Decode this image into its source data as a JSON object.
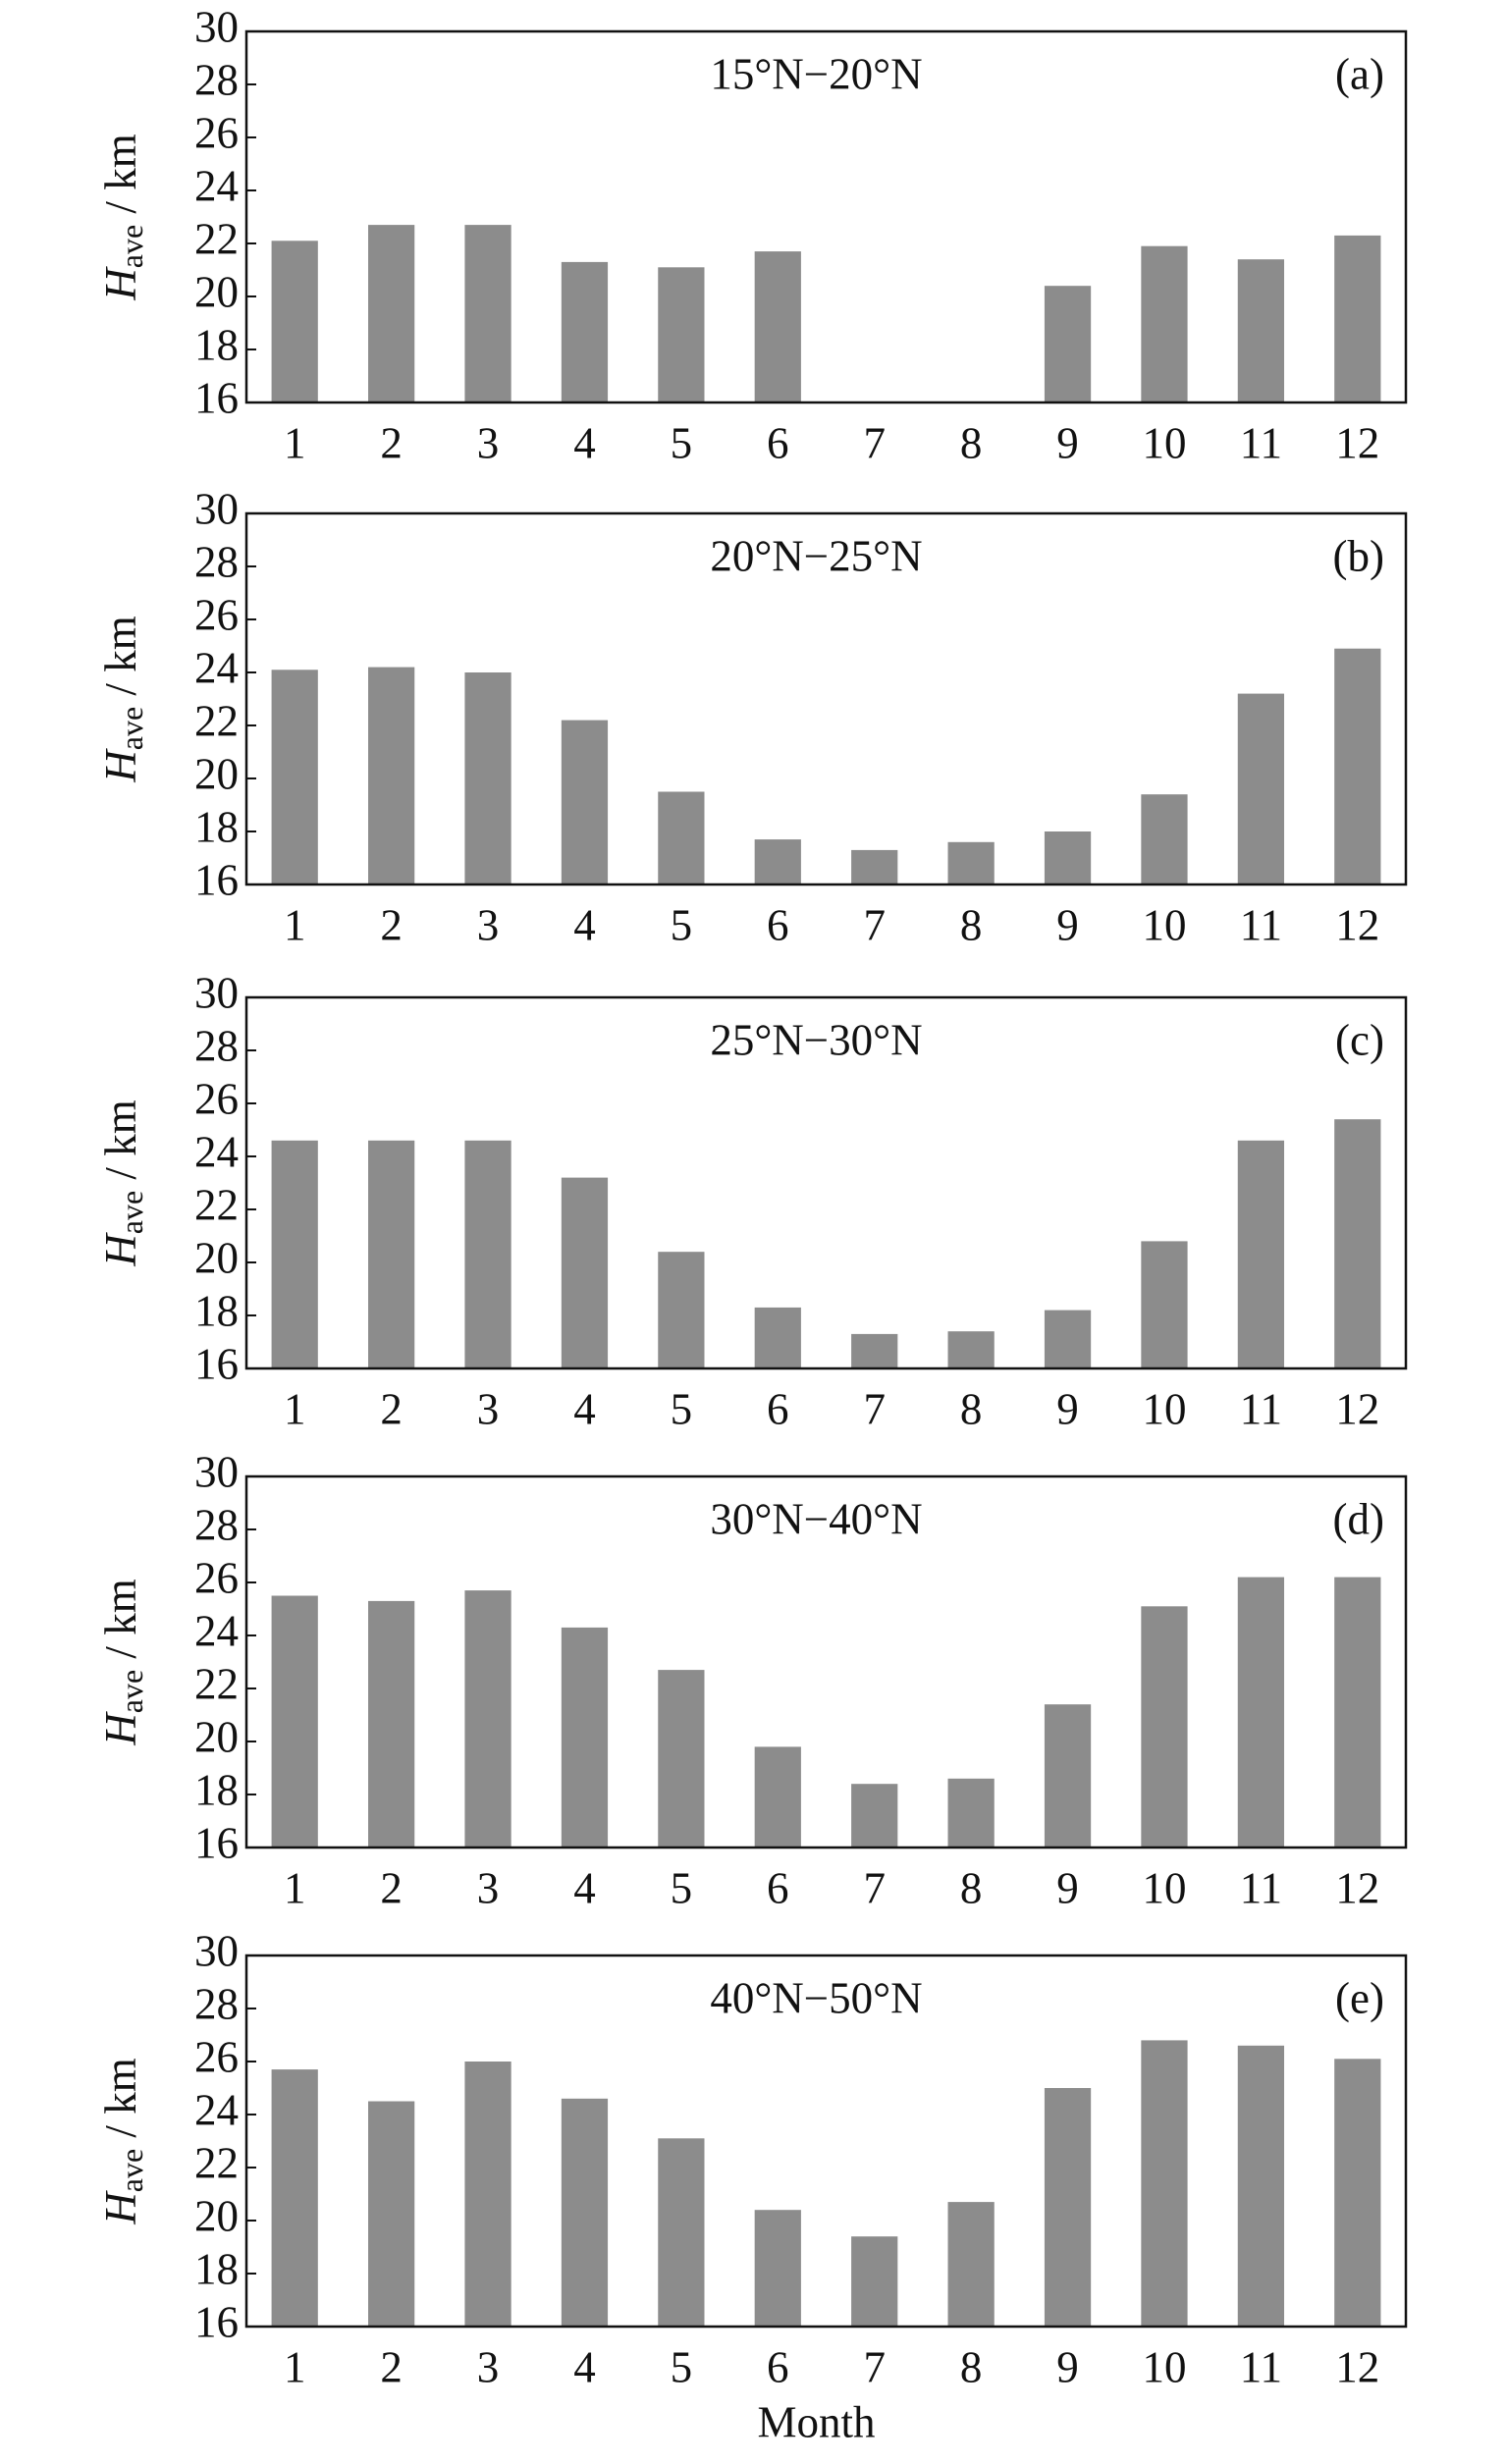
{
  "chart_data": [
    {
      "type": "bar",
      "title": "15°N−20°N",
      "panel_label": "(a)",
      "ylabel": {
        "symbol": "H",
        "subscript": "ave",
        "unit": " / km"
      },
      "categories": [
        "1",
        "2",
        "3",
        "4",
        "5",
        "6",
        "7",
        "8",
        "9",
        "10",
        "11",
        "12"
      ],
      "values": [
        22.1,
        22.7,
        22.7,
        21.3,
        21.1,
        21.7,
        null,
        null,
        20.4,
        21.9,
        21.4,
        22.3
      ],
      "color": "#8c8c8c",
      "ylim": [
        16,
        30
      ],
      "yticks": [
        16,
        18,
        20,
        22,
        24,
        26,
        28,
        30
      ]
    },
    {
      "type": "bar",
      "title": "20°N−25°N",
      "panel_label": "(b)",
      "ylabel": {
        "symbol": "H",
        "subscript": "ave",
        "unit": " / km"
      },
      "categories": [
        "1",
        "2",
        "3",
        "4",
        "5",
        "6",
        "7",
        "8",
        "9",
        "10",
        "11",
        "12"
      ],
      "values": [
        24.1,
        24.2,
        24.0,
        22.2,
        19.5,
        17.7,
        17.3,
        17.6,
        18.0,
        19.4,
        23.2,
        24.9
      ],
      "color": "#8c8c8c",
      "ylim": [
        16,
        30
      ],
      "yticks": [
        16,
        18,
        20,
        22,
        24,
        26,
        28,
        30
      ]
    },
    {
      "type": "bar",
      "title": "25°N−30°N",
      "panel_label": "(c)",
      "ylabel": {
        "symbol": "H",
        "subscript": "ave",
        "unit": " / km"
      },
      "categories": [
        "1",
        "2",
        "3",
        "4",
        "5",
        "6",
        "7",
        "8",
        "9",
        "10",
        "11",
        "12"
      ],
      "values": [
        24.6,
        24.6,
        24.6,
        23.2,
        20.4,
        18.3,
        17.3,
        17.4,
        18.2,
        20.8,
        24.6,
        25.4
      ],
      "color": "#8c8c8c",
      "ylim": [
        16,
        30
      ],
      "yticks": [
        16,
        18,
        20,
        22,
        24,
        26,
        28,
        30
      ]
    },
    {
      "type": "bar",
      "title": "30°N−40°N",
      "panel_label": "(d)",
      "ylabel": {
        "symbol": "H",
        "subscript": "ave",
        "unit": " / km"
      },
      "categories": [
        "1",
        "2",
        "3",
        "4",
        "5",
        "6",
        "7",
        "8",
        "9",
        "10",
        "11",
        "12"
      ],
      "values": [
        25.5,
        25.3,
        25.7,
        24.3,
        22.7,
        19.8,
        18.4,
        18.6,
        21.4,
        25.1,
        26.2,
        26.2
      ],
      "color": "#8c8c8c",
      "ylim": [
        16,
        30
      ],
      "yticks": [
        16,
        18,
        20,
        22,
        24,
        26,
        28,
        30
      ]
    },
    {
      "type": "bar",
      "title": "40°N−50°N",
      "panel_label": "(e)",
      "ylabel": {
        "symbol": "H",
        "subscript": "ave",
        "unit": " / km"
      },
      "xlabel": "Month",
      "categories": [
        "1",
        "2",
        "3",
        "4",
        "5",
        "6",
        "7",
        "8",
        "9",
        "10",
        "11",
        "12"
      ],
      "values": [
        25.7,
        24.5,
        26.0,
        24.6,
        23.1,
        20.4,
        19.4,
        20.7,
        25.0,
        26.8,
        26.6,
        26.1
      ],
      "color": "#8c8c8c",
      "ylim": [
        16,
        30
      ],
      "yticks": [
        16,
        18,
        20,
        22,
        24,
        26,
        28,
        30
      ]
    }
  ]
}
